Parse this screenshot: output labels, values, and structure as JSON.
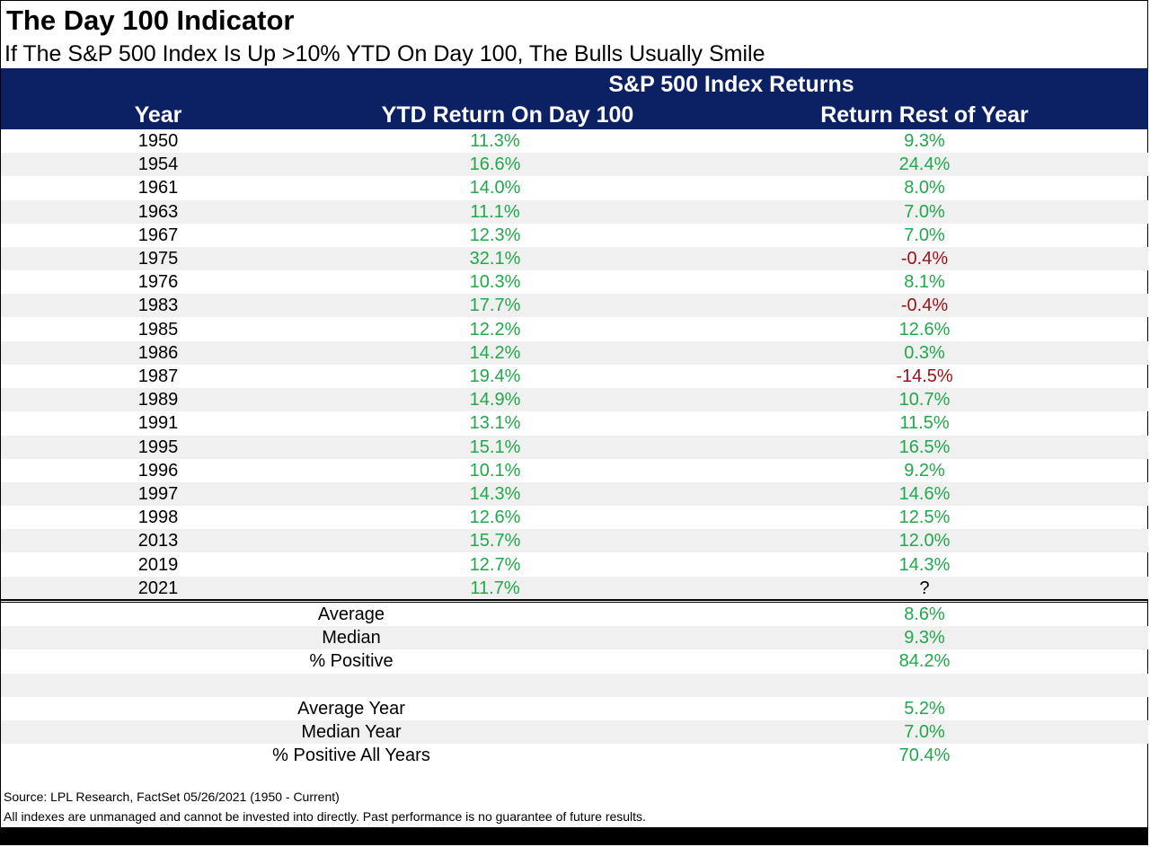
{
  "title": "The Day 100 Indicator",
  "subtitle": "If The S&P 500 Index Is Up >10% YTD On Day 100, The Bulls Usually Smile",
  "colors": {
    "header_bg": "#0c2064",
    "positive": "#21a84b",
    "negative": "#9b1018",
    "shade": "#f0f0f0"
  },
  "chart_data": {
    "type": "table",
    "header_group": "S&P 500 Index Returns",
    "columns": [
      "Year",
      "YTD Return On Day 100",
      "Return Rest of Year"
    ],
    "rows": [
      {
        "year": "1950",
        "ytd": "11.3%",
        "rest": "9.3%"
      },
      {
        "year": "1954",
        "ytd": "16.6%",
        "rest": "24.4%"
      },
      {
        "year": "1961",
        "ytd": "14.0%",
        "rest": "8.0%"
      },
      {
        "year": "1963",
        "ytd": "11.1%",
        "rest": "7.0%"
      },
      {
        "year": "1967",
        "ytd": "12.3%",
        "rest": "7.0%"
      },
      {
        "year": "1975",
        "ytd": "32.1%",
        "rest": "-0.4%"
      },
      {
        "year": "1976",
        "ytd": "10.3%",
        "rest": "8.1%"
      },
      {
        "year": "1983",
        "ytd": "17.7%",
        "rest": "-0.4%"
      },
      {
        "year": "1985",
        "ytd": "12.2%",
        "rest": "12.6%"
      },
      {
        "year": "1986",
        "ytd": "14.2%",
        "rest": "0.3%"
      },
      {
        "year": "1987",
        "ytd": "19.4%",
        "rest": "-14.5%"
      },
      {
        "year": "1989",
        "ytd": "14.9%",
        "rest": "10.7%"
      },
      {
        "year": "1991",
        "ytd": "13.1%",
        "rest": "11.5%"
      },
      {
        "year": "1995",
        "ytd": "15.1%",
        "rest": "16.5%"
      },
      {
        "year": "1996",
        "ytd": "10.1%",
        "rest": "9.2%"
      },
      {
        "year": "1997",
        "ytd": "14.3%",
        "rest": "14.6%"
      },
      {
        "year": "1998",
        "ytd": "12.6%",
        "rest": "12.5%"
      },
      {
        "year": "2013",
        "ytd": "15.7%",
        "rest": "12.0%"
      },
      {
        "year": "2019",
        "ytd": "12.7%",
        "rest": "14.3%"
      },
      {
        "year": "2021",
        "ytd": "11.7%",
        "rest": "?"
      }
    ],
    "summary": [
      {
        "label": "Average",
        "value": "8.6%"
      },
      {
        "label": "Median",
        "value": "9.3%"
      },
      {
        "label": "% Positive",
        "value": "84.2%"
      },
      {
        "label": "",
        "value": ""
      },
      {
        "label": "Average Year",
        "value": "5.2%"
      },
      {
        "label": "Median Year",
        "value": "7.0%"
      },
      {
        "label": "% Positive All Years",
        "value": "70.4%"
      }
    ]
  },
  "source": "Source: LPL Research, FactSet 05/26/2021 (1950 - Current)",
  "disclaimer": "All indexes are unmanaged and cannot be invested into directly. Past performance is no guarantee of future results."
}
